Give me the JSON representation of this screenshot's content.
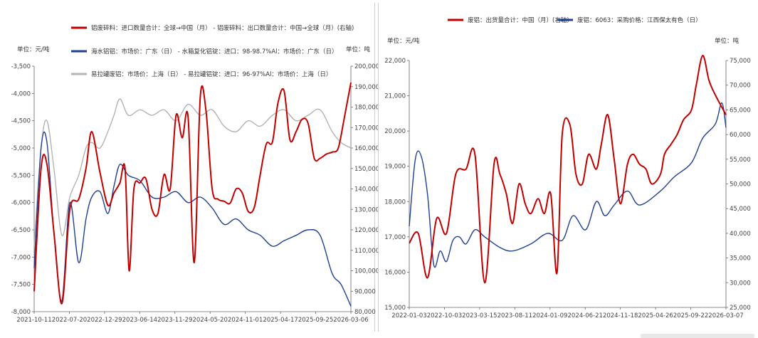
{
  "charts": [
    {
      "id": "left",
      "unit_left": "单位：元/吨",
      "unit_right": "单位：吨",
      "y_left_ticks": [
        "-3,500",
        "-4,000",
        "-4,500",
        "-5,000",
        "-5,500",
        "-6,000",
        "-6,500",
        "-7,000",
        "-7,500",
        "-8,000"
      ],
      "y_right_ticks": [
        "200,000",
        "190,000",
        "180,000",
        "170,000",
        "160,000",
        "150,000",
        "140,000",
        "130,000",
        "120,000",
        "110,000",
        "100,000",
        "90,000",
        "80,000"
      ],
      "x_ticks": [
        "2021-10-11",
        "2022-07-20",
        "2022-12-29",
        "2023-06-14",
        "2023-11-29",
        "2024-05-20",
        "2024-11-01",
        "2025-04-17",
        "2025-09-25",
        "2026-03-06"
      ]
    },
    {
      "id": "right",
      "unit_left": "单位：元/吨",
      "unit_right": "单位：吨",
      "y_left_ticks": [
        "22,000",
        "21,000",
        "20,000",
        "19,000",
        "18,000",
        "17,000",
        "16,000",
        "15,000"
      ],
      "y_right_ticks": [
        "75,000",
        "70,000",
        "65,000",
        "60,000",
        "55,000",
        "50,000",
        "45,000",
        "40,000",
        "35,000",
        "30,000",
        "25,000"
      ],
      "x_ticks": [
        "2022-01-03",
        "2022-10-03",
        "2023-03-15",
        "2023-08-11",
        "2024-01-09",
        "2024-06-21",
        "2024-11-18",
        "2025-04-26",
        "2025-09-22",
        "2026-03-07"
      ]
    }
  ],
  "chart_data": [
    {
      "type": "line",
      "x_range": [
        "2021-10-11",
        "2026-03-06"
      ],
      "y_left": {
        "label": "单位：元/吨",
        "range": [
          -8000,
          -3500
        ]
      },
      "y_right": {
        "label": "单位：吨",
        "range": [
          80000,
          200000
        ]
      },
      "grid": false,
      "legend_position": "top",
      "series": [
        {
          "name": "铝废碎料：进口数量合计：全球→中国（月） - 铝废碎料：出口数量合计：中国→全球（月）(右轴)",
          "axis": "right",
          "color": "#c00000",
          "x": [
            "2021-10-11",
            "2021-11-15",
            "2021-12-15",
            "2022-01-20",
            "2022-03-01",
            "2022-04-10",
            "2022-05-25",
            "2022-07-01",
            "2022-07-30",
            "2022-09-10",
            "2022-10-20",
            "2022-11-20",
            "2022-12-20",
            "2023-01-15",
            "2023-02-05",
            "2023-03-01",
            "2023-04-01",
            "2023-05-01",
            "2023-06-01",
            "2023-07-01",
            "2023-08-01",
            "2023-09-01",
            "2023-10-01",
            "2023-11-01",
            "2023-12-01",
            "2024-01-01",
            "2024-02-01",
            "2024-03-01",
            "2024-04-01",
            "2024-05-01",
            "2024-06-01",
            "2024-07-01",
            "2024-08-01",
            "2024-09-01",
            "2024-10-01",
            "2024-11-01",
            "2024-12-01",
            "2025-01-01",
            "2025-02-01",
            "2025-03-01",
            "2025-04-01",
            "2025-05-01",
            "2025-06-01",
            "2025-07-01",
            "2025-08-01",
            "2025-09-01",
            "2025-10-01",
            "2025-11-01",
            "2025-12-01",
            "2026-01-01",
            "2026-02-01",
            "2026-03-06"
          ],
          "values": [
            90000,
            150000,
            152000,
            118000,
            84000,
            130000,
            135000,
            150000,
            168000,
            148000,
            132000,
            138000,
            143000,
            150000,
            100000,
            140000,
            143000,
            145000,
            130000,
            128000,
            147000,
            140000,
            176000,
            165000,
            175000,
            104000,
            185000,
            178000,
            140000,
            135000,
            134000,
            133000,
            140000,
            138000,
            129000,
            131000,
            147000,
            162000,
            163000,
            182000,
            188000,
            164000,
            168000,
            174000,
            172000,
            155000,
            155000,
            157000,
            158000,
            160000,
            175000,
            192000
          ]
        },
        {
          "name": "海水铝铝：市场价：广东（日） - 水箱复化铝锭：进口：98-98.7%Al：市场价：广东（日）",
          "axis": "left",
          "color": "#1f3f8f",
          "x": [
            "2021-10-11",
            "2021-11-15",
            "2021-12-15",
            "2022-01-20",
            "2022-03-01",
            "2022-04-10",
            "2022-05-25",
            "2022-07-01",
            "2022-07-30",
            "2022-09-10",
            "2022-10-20",
            "2022-11-20",
            "2022-12-20",
            "2023-02-01",
            "2023-04-01",
            "2023-06-01",
            "2023-08-01",
            "2023-10-01",
            "2023-12-01",
            "2024-02-01",
            "2024-04-01",
            "2024-06-01",
            "2024-08-01",
            "2024-10-01",
            "2024-12-01",
            "2025-02-01",
            "2025-04-01",
            "2025-06-01",
            "2025-08-01",
            "2025-10-01",
            "2025-12-01",
            "2026-01-15",
            "2026-03-06"
          ],
          "values": [
            -7200,
            -5000,
            -4900,
            -6600,
            -7800,
            -6000,
            -7100,
            -6300,
            -5900,
            -5800,
            -6200,
            -5700,
            -5300,
            -5500,
            -5600,
            -5900,
            -5900,
            -5800,
            -6000,
            -5900,
            -6100,
            -6400,
            -6300,
            -6500,
            -6600,
            -6800,
            -6700,
            -6600,
            -6500,
            -6600,
            -7300,
            -7500,
            -7900
          ]
        },
        {
          "name": "易拉罐废铝：市场价：上海（日） - 易拉罐铝锭：进口：96-97%Al：市场价：上海（日）",
          "axis": "left",
          "color": "#b3b3b3",
          "x": [
            "2021-10-11",
            "2021-11-15",
            "2021-12-15",
            "2022-01-20",
            "2022-03-01",
            "2022-04-10",
            "2022-05-25",
            "2022-07-01",
            "2022-07-30",
            "2022-09-10",
            "2022-10-20",
            "2022-11-20",
            "2022-12-20",
            "2023-02-01",
            "2023-04-01",
            "2023-06-01",
            "2023-08-01",
            "2023-10-01",
            "2023-12-01",
            "2024-02-01",
            "2024-04-01",
            "2024-06-01",
            "2024-08-01",
            "2024-10-01",
            "2024-12-01",
            "2025-02-01",
            "2025-04-01",
            "2025-06-01",
            "2025-08-01",
            "2025-10-01",
            "2025-12-01",
            "2026-01-15",
            "2026-03-06"
          ],
          "values": [
            -6800,
            -5000,
            -4500,
            -5400,
            -6600,
            -5900,
            -5500,
            -5000,
            -4900,
            -5000,
            -4700,
            -4400,
            -4100,
            -4400,
            -4300,
            -4400,
            -4300,
            -4500,
            -4200,
            -4400,
            -4300,
            -4600,
            -4700,
            -4500,
            -4600,
            -4400,
            -4300,
            -4500,
            -4400,
            -4300,
            -4700,
            -4900,
            -5000
          ]
        }
      ]
    },
    {
      "type": "line",
      "x_range": [
        "2022-01-03",
        "2026-03-07"
      ],
      "y_left": {
        "label": "单位：元/吨",
        "range": [
          15000,
          22000
        ]
      },
      "y_right": {
        "label": "单位：吨",
        "range": [
          25000,
          75000
        ]
      },
      "grid": false,
      "legend_position": "top",
      "series": [
        {
          "name": "废铝：出货量合计：中国（月）(右轴)",
          "axis": "right",
          "color": "#c00000",
          "x": [
            "2022-01-03",
            "2022-02-15",
            "2022-04-01",
            "2022-05-15",
            "2022-07-01",
            "2022-08-15",
            "2022-10-03",
            "2022-11-15",
            "2023-01-01",
            "2023-02-15",
            "2023-03-15",
            "2023-04-15",
            "2023-05-15",
            "2023-06-15",
            "2023-07-15",
            "2023-08-11",
            "2023-09-15",
            "2023-10-15",
            "2023-11-15",
            "2023-12-15",
            "2024-01-09",
            "2024-02-15",
            "2024-03-15",
            "2024-04-15",
            "2024-05-15",
            "2024-06-21",
            "2024-07-15",
            "2024-08-15",
            "2024-09-15",
            "2024-10-15",
            "2024-11-18",
            "2024-12-15",
            "2025-01-15",
            "2025-02-15",
            "2025-03-15",
            "2025-04-26",
            "2025-05-15",
            "2025-06-15",
            "2025-07-15",
            "2025-08-15",
            "2025-09-22",
            "2025-10-15",
            "2025-11-15",
            "2025-12-15",
            "2026-01-15",
            "2026-03-07"
          ],
          "values": [
            38000,
            40000,
            31000,
            43000,
            40000,
            52000,
            53000,
            56000,
            30000,
            54000,
            52000,
            48000,
            42000,
            50000,
            46000,
            44000,
            47000,
            44000,
            48000,
            32000,
            60000,
            62000,
            52000,
            50000,
            56000,
            53000,
            58000,
            64000,
            55000,
            46000,
            54000,
            56000,
            54000,
            53000,
            50000,
            52000,
            56000,
            58000,
            60000,
            63000,
            65000,
            70000,
            76000,
            71000,
            68000,
            64000
          ]
        },
        {
          "name": "废铝：6063：采购价格：江西保太有色（日）",
          "axis": "left",
          "color": "#1f3f8f",
          "x": [
            "2022-01-03",
            "2022-02-01",
            "2022-03-01",
            "2022-04-01",
            "2022-05-01",
            "2022-06-01",
            "2022-07-01",
            "2022-08-01",
            "2022-09-01",
            "2022-10-03",
            "2022-11-15",
            "2023-01-01",
            "2023-03-15",
            "2023-05-15",
            "2023-08-11",
            "2023-11-01",
            "2024-01-09",
            "2024-03-01",
            "2024-05-01",
            "2024-06-21",
            "2024-08-01",
            "2024-09-15",
            "2024-11-18",
            "2025-01-15",
            "2025-04-26",
            "2025-07-01",
            "2025-09-22",
            "2025-11-15",
            "2026-01-15",
            "2026-02-15",
            "2026-03-07"
          ],
          "values": [
            17300,
            19200,
            19300,
            18200,
            16200,
            16600,
            16300,
            16900,
            17000,
            16800,
            17200,
            17000,
            16700,
            16600,
            16800,
            17100,
            16900,
            17600,
            17200,
            18000,
            17600,
            17900,
            18300,
            17900,
            18300,
            18700,
            19100,
            19800,
            20200,
            20800,
            20100
          ]
        }
      ]
    }
  ],
  "legend_left": [
    "铝废碎料：进口数量合计：全球→中国（月） - 铝废碎料：出口数量合计：中国→全球（月）(右轴)",
    "海水铝铝：市场价：广东（日） - 水箱复化铝锭：进口：98-98.7%Al：市场价：广东（日）",
    "易拉罐废铝：市场价：上海（日） - 易拉罐铝锭：进口：96-97%Al：市场价：上海（日）"
  ],
  "legend_right": [
    "废铝：出货量合计：中国（月）(右轴)",
    "废铝：6063：采购价格：江西保太有色（日）"
  ]
}
